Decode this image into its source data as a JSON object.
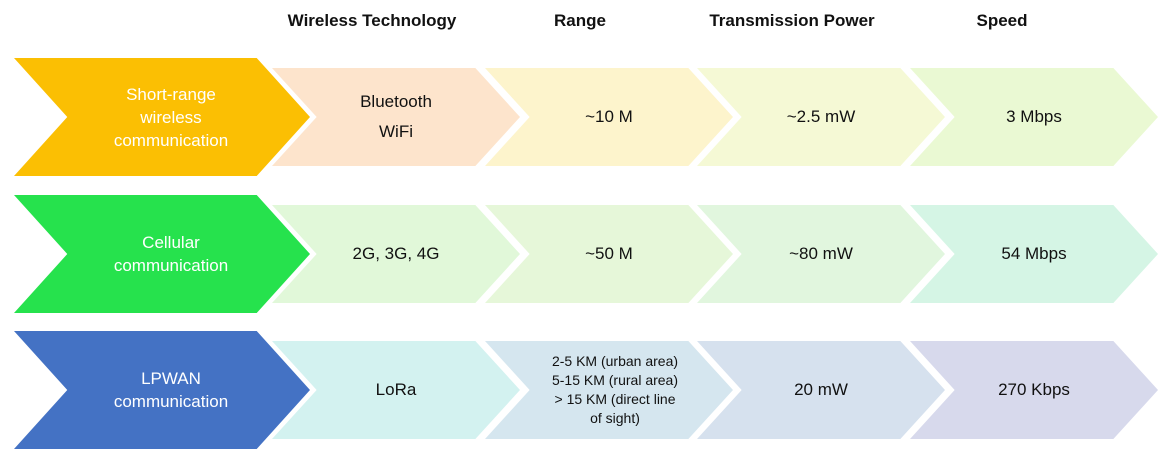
{
  "headers": [
    "Wireless Technology",
    "Range",
    "Transmission Power",
    "Speed"
  ],
  "rows": [
    {
      "category": "Short-range\nwireless\ncommunication",
      "technology": "Bluetooth\nWiFi",
      "range": "~10 M",
      "power": "~2.5 mW",
      "speed": "3 Mbps",
      "main_color": "#fbbf03",
      "cell_colors": [
        "#fde4cc",
        "#fdf4cc",
        "#f5f9d5",
        "#eaf9d3"
      ]
    },
    {
      "category": "Cellular\ncommunication",
      "technology": "2G, 3G, 4G",
      "range": "~50 M",
      "power": "~80 mW",
      "speed": "54 Mbps",
      "main_color": "#26e24d",
      "cell_colors": [
        "#e1f8d9",
        "#e6f7d9",
        "#e1f6de",
        "#d5f5e5"
      ]
    },
    {
      "category": "LPWAN\ncommunication",
      "technology": "LoRa",
      "range": "2-5 KM (urban area)\n5-15 KM (rural area)\n> 15 KM  (direct line\nof sight)",
      "power": "20 mW",
      "speed": "270 Kbps",
      "main_color": "#4472c4",
      "cell_colors": [
        "#d3f2f0",
        "#d5e6ef",
        "#d6e1ee",
        "#d7d9ec"
      ]
    }
  ]
}
